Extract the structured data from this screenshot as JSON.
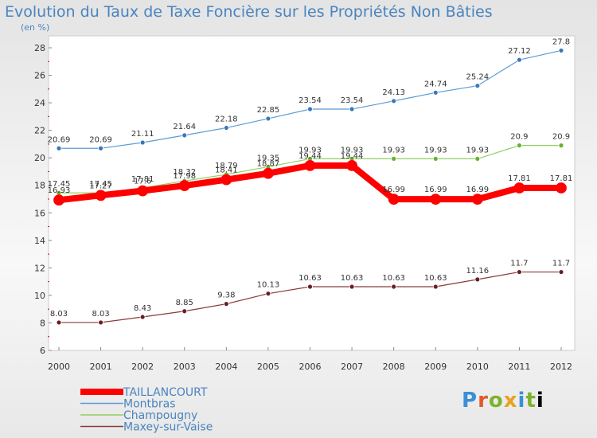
{
  "chart_data": {
    "type": "line",
    "title": "Evolution du Taux de Taxe Foncière sur les Propriétés Non Bâties",
    "unit_label": "(en %)",
    "xlabel": "",
    "ylabel": "",
    "categories": [
      "2000",
      "2001",
      "2002",
      "2003",
      "2004",
      "2005",
      "2006",
      "2007",
      "2008",
      "2009",
      "2010",
      "2011",
      "2012"
    ],
    "ylim": [
      6,
      28
    ],
    "yticks": [
      "6",
      "8",
      "10",
      "12",
      "14",
      "16",
      "18",
      "20",
      "22",
      "24",
      "26",
      "28"
    ],
    "series": [
      {
        "name": "Montbras",
        "color": "#5b9bd5",
        "width": 1.2,
        "marker": "#3a78b5",
        "values": [
          20.69,
          20.69,
          21.11,
          21.64,
          22.18,
          22.85,
          23.54,
          23.54,
          24.13,
          24.74,
          25.24,
          27.12,
          27.8
        ],
        "labels": [
          "20.69",
          "20.69",
          "21.11",
          "21.64",
          "22.18",
          "22.85",
          "23.54",
          "23.54",
          "24.13",
          "24.74",
          "25.24",
          "27.12",
          "27.8"
        ]
      },
      {
        "name": "Champougny",
        "color": "#90d060",
        "width": 1.2,
        "marker": "#6ab030",
        "values": [
          17.45,
          17.45,
          17.81,
          18.32,
          18.79,
          19.35,
          19.93,
          19.93,
          19.93,
          19.93,
          19.93,
          20.9,
          20.9
        ],
        "labels": [
          "17.45",
          "17.45",
          "17.81",
          "18.32",
          "18.79",
          "19.35",
          "19.93",
          "19.93",
          "19.93",
          "19.93",
          "19.93",
          "20.9",
          "20.9"
        ]
      },
      {
        "name": "TAILLANCOURT",
        "color": "#ff0000",
        "width": 8,
        "marker": "#e00000",
        "values": [
          16.93,
          17.27,
          17.6,
          17.98,
          18.41,
          18.87,
          19.44,
          19.44,
          16.99,
          16.99,
          16.99,
          17.81,
          17.81
        ],
        "labels": [
          "16.93",
          "17.27",
          "17.6",
          "17.98",
          "18.41",
          "18.87",
          "19.44",
          "19.44",
          "16.99",
          "16.99",
          "16.99",
          "17.81",
          "17.81"
        ]
      },
      {
        "name": "Maxey-sur-Vaise",
        "color": "#8a3a3a",
        "width": 1.2,
        "marker": "#6a1f1f",
        "values": [
          8.03,
          8.03,
          8.43,
          8.85,
          9.38,
          10.13,
          10.63,
          10.63,
          10.63,
          10.63,
          11.16,
          11.7,
          11.7
        ],
        "labels": [
          "8.03",
          "8.03",
          "8.43",
          "8.85",
          "9.38",
          "10.13",
          "10.63",
          "10.63",
          "10.63",
          "10.63",
          "11.16",
          "11.7",
          "11.7"
        ]
      }
    ],
    "legend": [
      "TAILLANCOURT",
      "Montbras",
      "Champougny",
      "Maxey-sur-Vaise"
    ],
    "legend_colors": [
      "#ff0000",
      "#5b9bd5",
      "#90d060",
      "#8a3a3a"
    ],
    "grid": false
  },
  "logo": {
    "letters": [
      "P",
      "r",
      "o",
      "x",
      "i",
      "t",
      "i"
    ]
  }
}
